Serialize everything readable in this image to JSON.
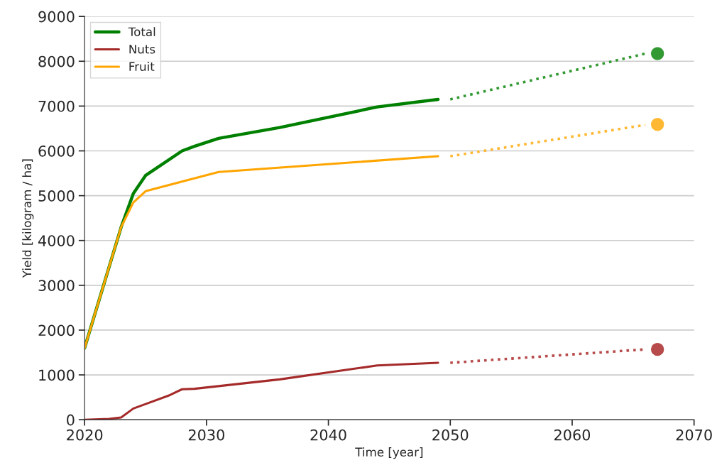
{
  "chart_data": {
    "type": "line",
    "xlabel": "Time [year]",
    "ylabel": "Yield [kilogram / ha]",
    "xlim": [
      2020,
      2070
    ],
    "xticks": [
      2020,
      2030,
      2040,
      2050,
      2060,
      2070
    ],
    "ylim": [
      0,
      9000
    ],
    "yticks": [
      0,
      1000,
      2000,
      3000,
      4000,
      5000,
      6000,
      7000,
      8000,
      9000
    ],
    "grid": "y",
    "legend": "top left",
    "series": [
      {
        "name": "Total",
        "color": "#008000",
        "line_style": "solid",
        "x": [
          2020,
          2023,
          2024,
          2025,
          2028,
          2029,
          2031,
          2036,
          2044,
          2049
        ],
        "values": [
          1600,
          4300,
          5050,
          5450,
          6000,
          6100,
          6280,
          6520,
          6980,
          7150
        ]
      },
      {
        "name": "Nuts",
        "color": "#a52a2a",
        "line_style": "solid",
        "x": [
          2020,
          2022,
          2023,
          2024,
          2025,
          2027,
          2028,
          2029,
          2036,
          2044,
          2049
        ],
        "values": [
          0,
          20,
          50,
          250,
          350,
          550,
          680,
          690,
          900,
          1210,
          1270
        ]
      },
      {
        "name": "Fruit",
        "color": "#ffa500",
        "line_style": "solid",
        "x": [
          2020,
          2023,
          2024,
          2025,
          2031,
          2049
        ],
        "values": [
          1600,
          4300,
          4850,
          5100,
          5530,
          5880
        ]
      },
      {
        "color": "#339933",
        "line_style": "dotted",
        "x": [
          2050,
          2066
        ],
        "values": [
          7150,
          8170
        ]
      },
      {
        "color": "#b74a4a",
        "line_style": "dotted",
        "x": [
          2050,
          2066
        ],
        "values": [
          1270,
          1570
        ]
      },
      {
        "color": "#ffb833",
        "line_style": "dotted",
        "x": [
          2050,
          2066
        ],
        "values": [
          5880,
          6580
        ]
      },
      {
        "type": "scatter",
        "marker": "circle",
        "color": "#339933",
        "x": [
          2067
        ],
        "values": [
          8170
        ]
      },
      {
        "type": "scatter",
        "marker": "circle",
        "color": "#b74a4a",
        "x": [
          2067
        ],
        "values": [
          1570
        ]
      },
      {
        "type": "scatter",
        "marker": "circle",
        "color": "#ffb833",
        "x": [
          2067
        ],
        "values": [
          6590
        ]
      }
    ]
  }
}
